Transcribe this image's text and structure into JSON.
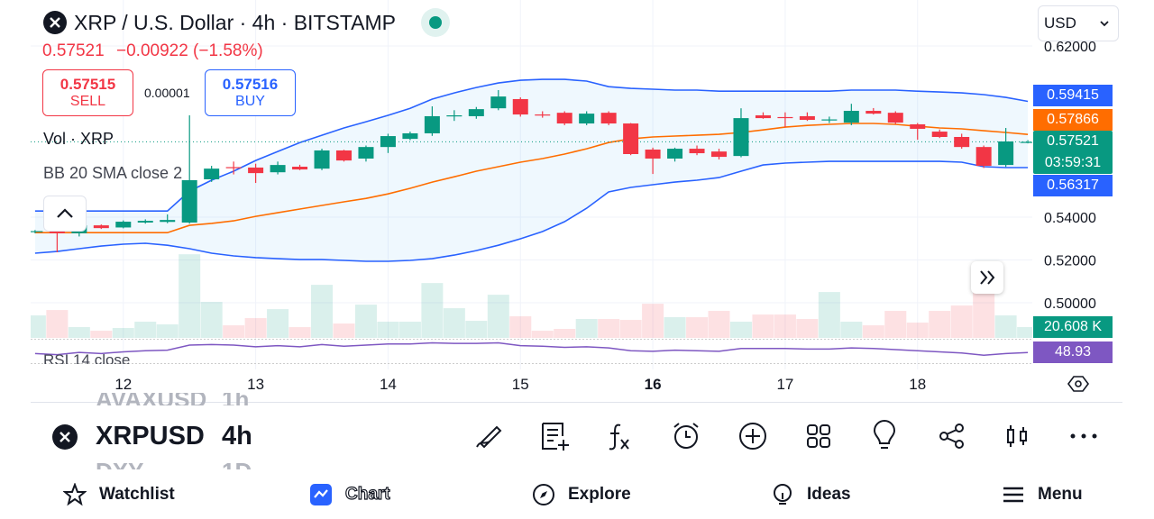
{
  "header": {
    "title": "XRP / U.S. Dollar · 4h · BITSTAMP",
    "price": "0.57521",
    "change": "−0.00922 (−1.58%)",
    "currency": "USD"
  },
  "trade": {
    "sell_price": "0.57515",
    "sell_label": "SELL",
    "spread": "0.00001",
    "buy_price": "0.57516",
    "buy_label": "BUY"
  },
  "indicators": {
    "volume": "Vol · XRP",
    "bollinger": "BB 20 SMA close 2",
    "rsi": "RSI 14 close"
  },
  "countdown": "03:59:31",
  "chart_data": {
    "type": "candlestick",
    "up_color": "#089981",
    "down_color": "#f23645",
    "open": [
      0.5333,
      0.5335,
      0.5325,
      0.5362,
      0.5352,
      0.5375,
      0.5378,
      0.5375,
      0.5577,
      0.5634,
      0.5632,
      0.561,
      0.5636,
      0.5627,
      0.5712,
      0.5674,
      0.5728,
      0.5766,
      0.5792,
      0.5874,
      0.5872,
      0.5909,
      0.5952,
      0.588,
      0.5888,
      0.5838,
      0.5888,
      0.5838,
      0.5716,
      0.5674,
      0.572,
      0.5707,
      0.5686,
      0.5876,
      0.5868,
      0.5872,
      0.5855,
      0.5842,
      0.5897,
      0.5888,
      0.5834,
      0.58,
      0.5775,
      0.5728,
      0.5644,
      0.5752
    ],
    "high": [
      0.534,
      0.534,
      0.537,
      0.5366,
      0.5385,
      0.539,
      0.5413,
      0.5876,
      0.564,
      0.566,
      0.565,
      0.566,
      0.5645,
      0.572,
      0.5715,
      0.5735,
      0.579,
      0.58,
      0.5918,
      0.59,
      0.5915,
      0.5994,
      0.596,
      0.5895,
      0.5895,
      0.5895,
      0.5895,
      0.584,
      0.5725,
      0.5725,
      0.5735,
      0.572,
      0.5909,
      0.589,
      0.589,
      0.589,
      0.587,
      0.593,
      0.591,
      0.5895,
      0.584,
      0.581,
      0.579,
      0.5735,
      0.5817,
      0.576
    ],
    "low": [
      0.5325,
      0.5236,
      0.531,
      0.5345,
      0.5348,
      0.537,
      0.5372,
      0.537,
      0.5565,
      0.56,
      0.556,
      0.56,
      0.562,
      0.562,
      0.566,
      0.566,
      0.57,
      0.576,
      0.578,
      0.585,
      0.586,
      0.59,
      0.587,
      0.5865,
      0.583,
      0.583,
      0.583,
      0.569,
      0.5602,
      0.566,
      0.569,
      0.567,
      0.568,
      0.586,
      0.582,
      0.585,
      0.584,
      0.583,
      0.588,
      0.5835,
      0.5762,
      0.577,
      0.572,
      0.563,
      0.5635,
      0.5745
    ],
    "close": [
      0.5335,
      0.5325,
      0.5362,
      0.5349,
      0.5379,
      0.5383,
      0.5387,
      0.5573,
      0.5627,
      0.563,
      0.5606,
      0.5644,
      0.5623,
      0.5712,
      0.5665,
      0.5728,
      0.5779,
      0.5792,
      0.5872,
      0.5876,
      0.5905,
      0.5964,
      0.588,
      0.5878,
      0.5838,
      0.5884,
      0.5838,
      0.5695,
      0.5674,
      0.572,
      0.5699,
      0.5682,
      0.5863,
      0.5863,
      0.5866,
      0.5855,
      0.5857,
      0.5897,
      0.5884,
      0.5842,
      0.5813,
      0.5775,
      0.5728,
      0.564,
      0.5754,
      0.57521
    ],
    "bollinger": {
      "upper_color": "#2962ff",
      "basis_color": "#ff6d00",
      "lower_color": "#2962ff",
      "upper": [
        0.5429,
        0.5429,
        0.5429,
        0.5429,
        0.5429,
        0.5429,
        0.5429,
        0.5522,
        0.5573,
        0.5615,
        0.5665,
        0.5707,
        0.5749,
        0.5783,
        0.5817,
        0.5846,
        0.5876,
        0.5909,
        0.5952,
        0.5981,
        0.6006,
        0.6027,
        0.604,
        0.6044,
        0.6044,
        0.6036,
        0.601,
        0.6002,
        0.5998,
        0.5994,
        0.5994,
        0.5989,
        0.5989,
        0.5989,
        0.5989,
        0.5989,
        0.5989,
        0.5994,
        0.5994,
        0.5994,
        0.5989,
        0.5985,
        0.5981,
        0.5973,
        0.596,
        0.59415
      ],
      "basis": [
        0.5328,
        0.5328,
        0.5328,
        0.5328,
        0.5328,
        0.5328,
        0.5328,
        0.5362,
        0.5371,
        0.5383,
        0.5404,
        0.5421,
        0.5438,
        0.5455,
        0.5472,
        0.5488,
        0.5509,
        0.5535,
        0.5564,
        0.5589,
        0.5615,
        0.5636,
        0.5657,
        0.5674,
        0.5695,
        0.572,
        0.5749,
        0.5766,
        0.5775,
        0.5779,
        0.5783,
        0.5787,
        0.5796,
        0.5808,
        0.5821,
        0.5829,
        0.5834,
        0.5838,
        0.5838,
        0.5834,
        0.5825,
        0.5817,
        0.5813,
        0.5804,
        0.5796,
        0.57866
      ],
      "lower": [
        0.5232,
        0.524,
        0.5253,
        0.5265,
        0.5274,
        0.5278,
        0.5269,
        0.5253,
        0.5232,
        0.5219,
        0.5211,
        0.5206,
        0.5202,
        0.5202,
        0.5198,
        0.5194,
        0.5194,
        0.5198,
        0.5206,
        0.5223,
        0.5244,
        0.5269,
        0.5299,
        0.5333,
        0.5379,
        0.5442,
        0.5518,
        0.5539,
        0.5552,
        0.5564,
        0.5573,
        0.5585,
        0.5615,
        0.5644,
        0.5653,
        0.5657,
        0.5661,
        0.5661,
        0.5661,
        0.5661,
        0.5661,
        0.5661,
        0.5657,
        0.5636,
        0.5632,
        0.56317
      ]
    },
    "volume": {
      "values": [
        42.9,
        53.2,
        20.6,
        13.7,
        18.9,
        30.9,
        25.8,
        159.7,
        68.7,
        24.0,
        37.8,
        54.9,
        20.6,
        101.3,
        27.5,
        63.5,
        30.9,
        30.9,
        104.7,
        56.7,
        32.6,
        82.4,
        41.2,
        13.7,
        17.2,
        36.1,
        36.1,
        34.3,
        65.2,
        39.5,
        39.5,
        51.5,
        30.9,
        44.6,
        44.6,
        36.1,
        87.6,
        30.9,
        24.0,
        51.5,
        29.2,
        51.5,
        61.8,
        91.0,
        42.9,
        20.608
      ],
      "last_label": "20.608 K",
      "ylim": [
        0,
        160
      ]
    },
    "rsi": {
      "values": [
        47,
        45,
        49,
        47,
        50,
        52,
        53,
        62,
        63,
        62,
        59,
        61,
        59,
        63,
        60,
        62,
        64,
        64,
        66,
        65,
        65,
        66,
        61,
        60,
        58,
        59,
        57,
        52,
        51,
        53,
        52,
        51,
        56,
        56,
        56,
        55,
        55,
        57,
        56,
        54,
        52,
        50,
        48,
        44,
        47,
        48.93
      ],
      "ylim": [
        30,
        70
      ],
      "color": "#7e57c2"
    },
    "ylim": [
      0.4836,
      0.6415
    ],
    "yticks": [
      {
        "value": 0.62,
        "label": "0.62000"
      },
      {
        "value": 0.54,
        "label": "0.54000"
      },
      {
        "value": 0.52,
        "label": "0.52000"
      },
      {
        "value": 0.5,
        "label": "0.50000"
      }
    ],
    "xlim": [
      -0.2,
      45.2
    ],
    "xticks": [
      {
        "value": 4,
        "label": "12"
      },
      {
        "value": 10,
        "label": "13"
      },
      {
        "value": 16,
        "label": "14"
      },
      {
        "value": 22,
        "label": "15"
      },
      {
        "value": 28,
        "label": "16"
      },
      {
        "value": 34,
        "label": "17"
      },
      {
        "value": 40,
        "label": "18"
      }
    ],
    "bold_xtick": 4,
    "grid": true
  },
  "toolbar": {
    "prev_symbol": "AVAXUSD",
    "prev_interval": "1h",
    "symbol": "XRPUSD",
    "interval": "4h",
    "next_symbol": "DXY",
    "next_interval": "1D"
  },
  "nav": [
    "Watchlist",
    "Chart",
    "Explore",
    "Ideas",
    "Menu"
  ]
}
